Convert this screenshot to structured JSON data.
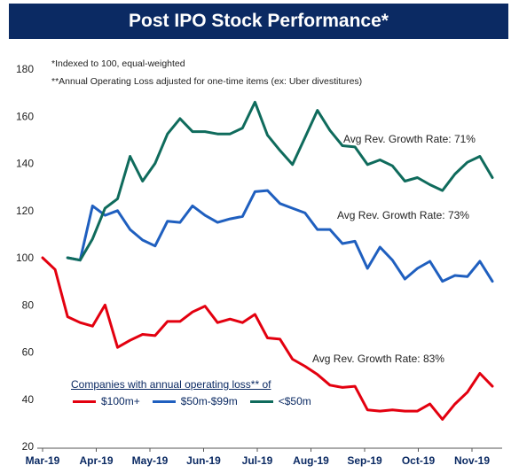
{
  "chart_data": {
    "type": "line",
    "title": "Post IPO Stock Performance*",
    "notes": [
      "*Indexed to 100, equal-weighted",
      "**Annual Operating Loss adjusted for one-time items (ex: Uber divestitures)"
    ],
    "x_tick_labels": [
      "Mar-19",
      "Apr-19",
      "May-19",
      "Jun-19",
      "Jul-19",
      "Aug-19",
      "Sep-19",
      "Oct-19",
      "Nov-19"
    ],
    "ylim": [
      20,
      180
    ],
    "y_ticks": [
      20,
      40,
      60,
      80,
      100,
      120,
      140,
      160,
      180
    ],
    "legend_title": "Companies with annual operating loss** of",
    "legend_position": "bottom-left",
    "series": [
      {
        "name": "$100m+",
        "color": "#e3000f",
        "values": [
          100,
          95,
          75,
          72.5,
          71,
          80,
          62,
          65,
          67.5,
          67,
          73,
          73,
          77,
          79.5,
          72.5,
          74,
          72.5,
          76,
          66,
          65.5,
          57,
          54,
          50.5,
          46,
          45,
          45.5,
          35.5,
          35,
          35.5,
          35,
          35,
          38,
          31.5,
          38,
          43,
          51,
          45.5
        ],
        "annotation": "Avg Rev. Growth Rate: 83%"
      },
      {
        "name": "$50m-$99m",
        "color": "#1f5fbf",
        "values": [
          null,
          null,
          100,
          99,
          122,
          118,
          120,
          112,
          107.5,
          105,
          115.5,
          115,
          122,
          118,
          115,
          116.5,
          117.5,
          128,
          128.5,
          123,
          121,
          119,
          112,
          112,
          106,
          107,
          95.5,
          104.5,
          99,
          91,
          95.5,
          98.5,
          90,
          92.5,
          92,
          98.5,
          90
        ],
        "annotation": "Avg Rev. Growth Rate: 73%"
      },
      {
        "name": "<$50m",
        "color": "#0f6b5c",
        "values": [
          null,
          null,
          100,
          99,
          108,
          121,
          125,
          143,
          132.5,
          140,
          152.5,
          159,
          153.5,
          153.5,
          152.5,
          152.5,
          155,
          166,
          152,
          145.5,
          139.5,
          151,
          162.5,
          154,
          147.5,
          147,
          139.5,
          141.5,
          139,
          132.5,
          134,
          131,
          128.5,
          135.5,
          140.5,
          143,
          134
        ],
        "annotation": "Avg Rev. Growth Rate: 71%"
      }
    ]
  }
}
